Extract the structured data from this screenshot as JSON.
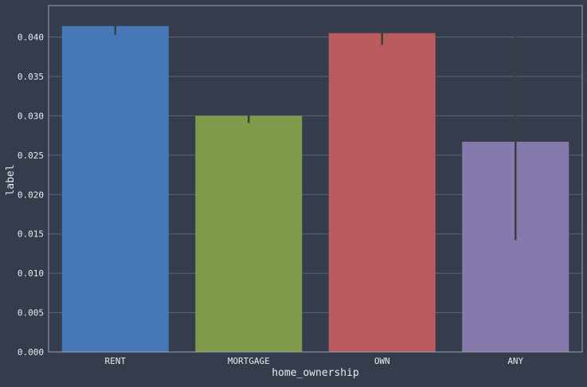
{
  "chart_data": {
    "type": "bar",
    "xlabel": "home_ownership",
    "ylabel": "label",
    "categories": [
      "RENT",
      "MORTGAGE",
      "OWN",
      "ANY"
    ],
    "values": [
      0.0414,
      0.03,
      0.0405,
      0.0267
    ],
    "error_bars": [
      [
        0.0403,
        0.0422
      ],
      [
        0.0291,
        0.0303
      ],
      [
        0.039,
        0.0418
      ],
      [
        0.0142,
        0.0405
      ]
    ],
    "colors": [
      "#4677b7",
      "#7f9a4a",
      "#b95b5f",
      "#8679ac"
    ],
    "ylim": [
      0,
      0.044
    ],
    "yticks": [
      "0.000",
      "0.005",
      "0.010",
      "0.015",
      "0.020",
      "0.025",
      "0.030",
      "0.035",
      "0.040"
    ],
    "grid": true,
    "style": {
      "background": "#353c4b",
      "axes_edge": "#9aa4b4",
      "grid_color": "#5a6475",
      "text_color": "#e8ebef",
      "errorbar_color": "#3b3f45"
    }
  }
}
